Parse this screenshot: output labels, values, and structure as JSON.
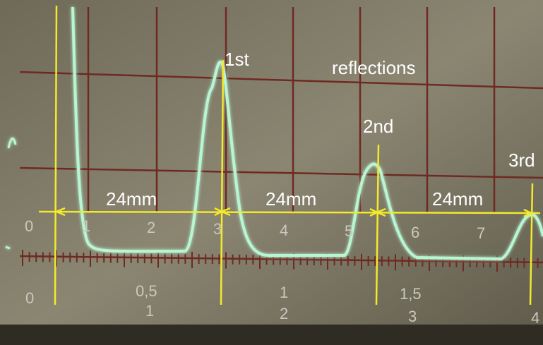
{
  "annotations": {
    "peaks": [
      "1st",
      "2nd",
      "3rd"
    ],
    "caption": "reflections",
    "spacings": [
      "24mm",
      "24mm",
      "24mm"
    ]
  },
  "scale": {
    "top": [
      "0",
      "1",
      "2",
      "3",
      "4",
      "5",
      "6",
      "7"
    ],
    "bottom_upper": [
      "0",
      "0,5",
      "1",
      "1,5"
    ],
    "bottom_lower": [
      "1",
      "2",
      "3",
      "4"
    ]
  }
}
